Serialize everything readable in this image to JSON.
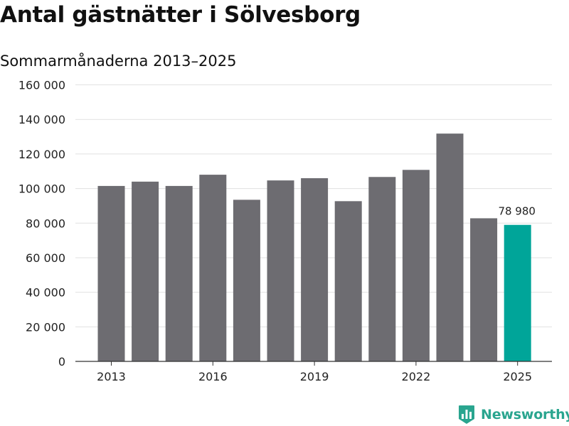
{
  "title": "Antal gästnätter i Sölvesborg",
  "subtitle": "Sommarmånaderna 2013–2025",
  "brand": {
    "name": "Newsworthy",
    "color": "#2aa58f",
    "icon": "bar-chart-icon"
  },
  "colors": {
    "bar": "#6d6c71",
    "highlight": "#00a599",
    "grid": "#e1e1e1",
    "axis": "#333333"
  },
  "chart_data": {
    "type": "bar",
    "title": "Antal gästnätter i Sölvesborg",
    "subtitle": "Sommarmånaderna 2013–2025",
    "xlabel": "",
    "ylabel": "",
    "categories": [
      "2013",
      "2014",
      "2015",
      "2016",
      "2017",
      "2018",
      "2019",
      "2020",
      "2021",
      "2022",
      "2023",
      "2024",
      "2025"
    ],
    "values": [
      101500,
      104000,
      101500,
      108000,
      93500,
      104700,
      106000,
      92700,
      106700,
      110800,
      131800,
      82800,
      78980
    ],
    "x_tick_labels": [
      "2013",
      "2016",
      "2019",
      "2022",
      "2025"
    ],
    "y_ticks": [
      0,
      20000,
      40000,
      60000,
      80000,
      100000,
      120000,
      140000,
      160000
    ],
    "y_tick_labels": [
      "0",
      "20 000",
      "40 000",
      "60 000",
      "80 000",
      "100 000",
      "120 000",
      "140 000",
      "160 000"
    ],
    "ylim": [
      0,
      160000
    ],
    "grid": true,
    "legend": "none",
    "highlight_index": 12,
    "annotations": [
      {
        "category": "2025",
        "text": "78 980"
      }
    ]
  }
}
